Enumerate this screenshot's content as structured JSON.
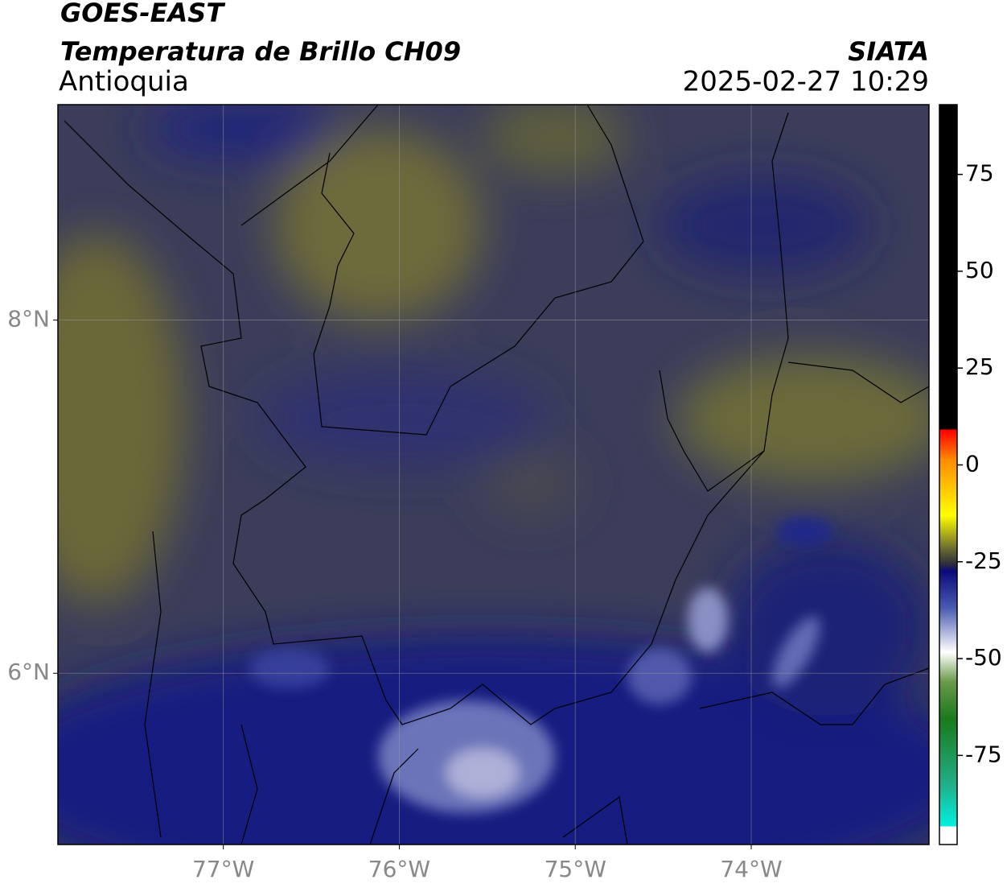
{
  "header": {
    "satellite": "GOES-EAST",
    "product": "Temperatura de Brillo CH09",
    "source": "SIATA",
    "region": "Antioquia",
    "datetime": "2025-02-27 10:29"
  },
  "map": {
    "xlim": [
      -77.94,
      -72.99
    ],
    "ylim": [
      5.03,
      9.22
    ],
    "xticks": [
      {
        "value": -77,
        "label": "77°W"
      },
      {
        "value": -76,
        "label": "76°W"
      },
      {
        "value": -75,
        "label": "75°W"
      },
      {
        "value": -74,
        "label": "74°W"
      }
    ],
    "yticks": [
      {
        "value": 8,
        "label": "8°N"
      },
      {
        "value": 6,
        "label": "6°N"
      }
    ],
    "grid": true
  },
  "colorbar": {
    "lim": [
      -98,
      93
    ],
    "ticks": [
      75,
      50,
      25,
      0,
      -25,
      -50,
      -75
    ]
  }
}
